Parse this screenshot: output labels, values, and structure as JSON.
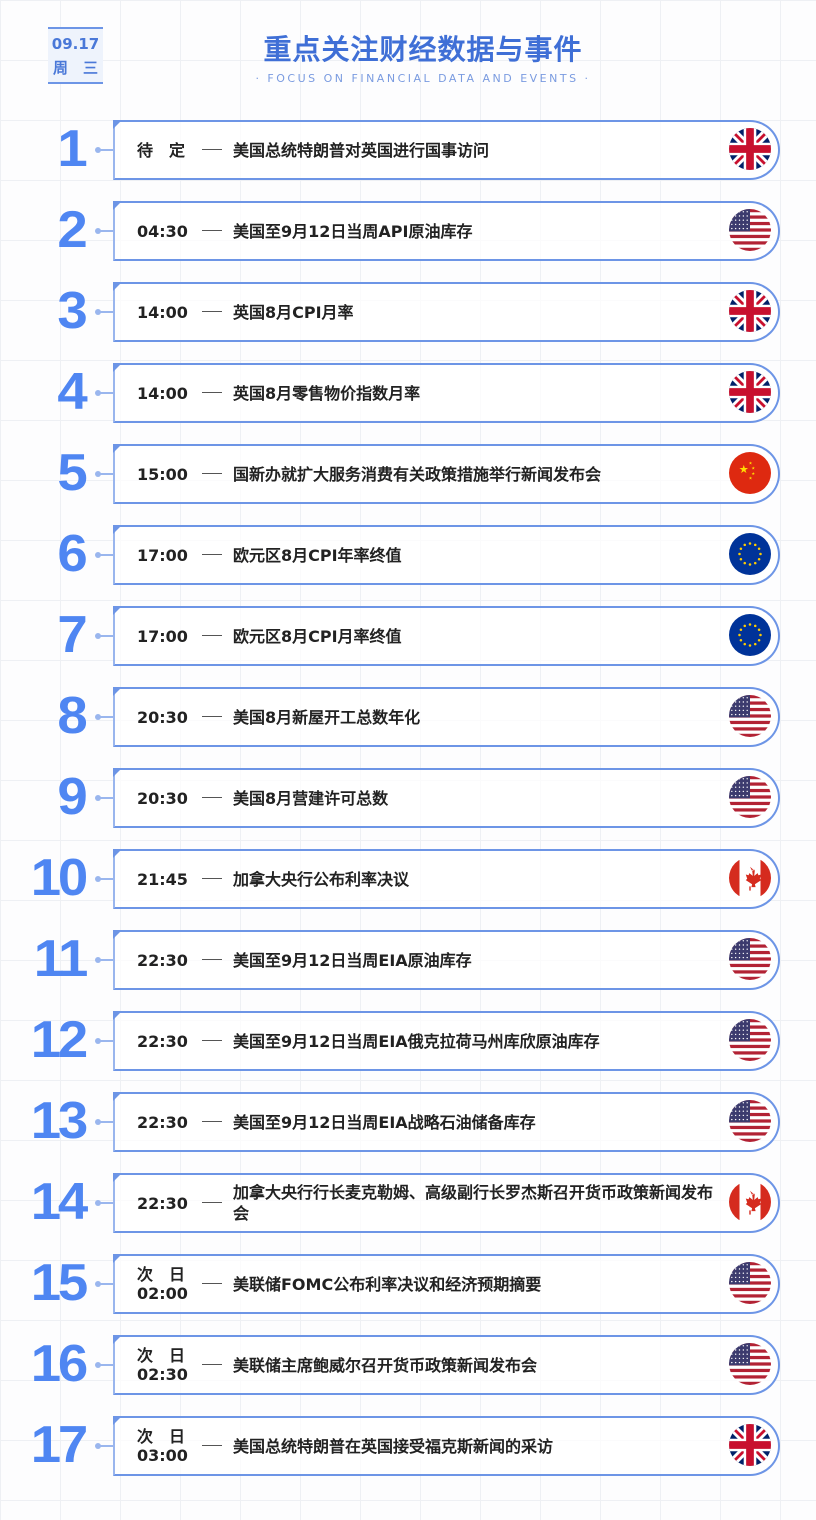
{
  "header": {
    "date": "09.17",
    "weekday": "周　三",
    "title": "重点关注财经数据与事件",
    "subtitle": "· FOCUS ON FINANCIAL DATA AND EVENTS ·"
  },
  "events": [
    {
      "num": "1",
      "time": "待　定",
      "event": "美国总统特朗普对英国进行国事访问",
      "flag": "uk"
    },
    {
      "num": "2",
      "time": "04:30",
      "event": "美国至9月12日当周API原油库存",
      "flag": "us"
    },
    {
      "num": "3",
      "time": "14:00",
      "event": "英国8月CPI月率",
      "flag": "uk"
    },
    {
      "num": "4",
      "time": "14:00",
      "event": "英国8月零售物价指数月率",
      "flag": "uk"
    },
    {
      "num": "5",
      "time": "15:00",
      "event": "国新办就扩大服务消费有关政策措施举行新闻发布会",
      "flag": "cn"
    },
    {
      "num": "6",
      "time": "17:00",
      "event": "欧元区8月CPI年率终值",
      "flag": "eu"
    },
    {
      "num": "7",
      "time": "17:00",
      "event": "欧元区8月CPI月率终值",
      "flag": "eu"
    },
    {
      "num": "8",
      "time": "20:30",
      "event": "美国8月新屋开工总数年化",
      "flag": "us"
    },
    {
      "num": "9",
      "time": "20:30",
      "event": "美国8月营建许可总数",
      "flag": "us"
    },
    {
      "num": "10",
      "time": "21:45",
      "event": "加拿大央行公布利率决议",
      "flag": "ca"
    },
    {
      "num": "11",
      "time": "22:30",
      "event": "美国至9月12日当周EIA原油库存",
      "flag": "us"
    },
    {
      "num": "12",
      "time": "22:30",
      "event": "美国至9月12日当周EIA俄克拉荷马州库欣原油库存",
      "flag": "us"
    },
    {
      "num": "13",
      "time": "22:30",
      "event": "美国至9月12日当周EIA战略石油储备库存",
      "flag": "us"
    },
    {
      "num": "14",
      "time": "22:30",
      "event": "加拿大央行行长麦克勒姆、高级副行长罗杰斯召开货币政策新闻发布会",
      "flag": "ca"
    },
    {
      "num": "15",
      "time": "次　日\n02:00",
      "event": "美联储FOMC公布利率决议和经济预期摘要",
      "flag": "us"
    },
    {
      "num": "16",
      "time": "次　日\n02:30",
      "event": "美联储主席鲍威尔召开货币政策新闻发布会",
      "flag": "us"
    },
    {
      "num": "17",
      "time": "次　日\n03:00",
      "event": "美国总统特朗普在英国接受福克斯新闻的采访",
      "flag": "uk"
    }
  ]
}
